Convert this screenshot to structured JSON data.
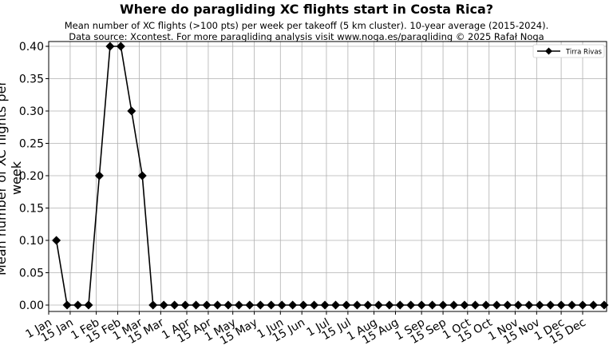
{
  "title": "Where do paragliding XC flights start in Costa Rica?",
  "subtitle_line1": "Mean number of XC flights (>100 pts) per week per takeoff (5 km cluster). 10-year average (2015-2024).",
  "subtitle_line2": "Data source: Xcontest. For more paragliding analysis visit www.noga.es/paragliding © 2025 Rafał Noga",
  "chart_data": {
    "type": "line",
    "title": "Where do paragliding XC flights start in Costa Rica?",
    "subtitle": "Mean number of XC flights (>100 pts) per week per takeoff (5 km cluster). 10-year average (2015-2024). Data source: Xcontest. For more paragliding analysis visit www.noga.es/paragliding © 2025 Rafał Noga",
    "xlabel": "",
    "ylabel": "Mean number of XC flights per week",
    "ylim": [
      -0.008,
      0.408
    ],
    "yticks": [
      0.0,
      0.05,
      0.1,
      0.15,
      0.2,
      0.25,
      0.3,
      0.35,
      0.4
    ],
    "ytick_labels": [
      "0.00",
      "0.05",
      "0.10",
      "0.15",
      "0.20",
      "0.25",
      "0.30",
      "0.35",
      "0.40"
    ],
    "xtick_labels": [
      "1 Jan",
      "15 Jan",
      "1 Feb",
      "15 Feb",
      "1 Mar",
      "15 Mar",
      "1 Apr",
      "15 Apr",
      "1 May",
      "15 May",
      "1 Jun",
      "15 Jun",
      "1 Jul",
      "15 Jul",
      "1 Aug",
      "15 Aug",
      "1 Sep",
      "15 Sep",
      "1 Oct",
      "15 Oct",
      "1 Nov",
      "15 Nov",
      "1 Dec",
      "15 Dec"
    ],
    "xtick_days": [
      0,
      14,
      31,
      45,
      59,
      73,
      90,
      104,
      120,
      134,
      151,
      165,
      181,
      195,
      212,
      226,
      243,
      257,
      273,
      287,
      304,
      318,
      334,
      348
    ],
    "grid": true,
    "legend_position": "upper right",
    "series": [
      {
        "name": "Tirra Rivas",
        "color": "#000000",
        "marker": "diamond",
        "x_week": [
          1,
          2,
          3,
          4,
          5,
          6,
          7,
          8,
          9,
          10,
          11,
          12,
          13,
          14,
          15,
          16,
          17,
          18,
          19,
          20,
          21,
          22,
          23,
          24,
          25,
          26,
          27,
          28,
          29,
          30,
          31,
          32,
          33,
          34,
          35,
          36,
          37,
          38,
          39,
          40,
          41,
          42,
          43,
          44,
          45,
          46,
          47,
          48,
          49,
          50,
          51,
          52
        ],
        "values": [
          0.1,
          0,
          0,
          0,
          0.2,
          0.4,
          0.4,
          0.3,
          0.2,
          0,
          0,
          0,
          0,
          0,
          0,
          0,
          0,
          0,
          0,
          0,
          0,
          0,
          0,
          0,
          0,
          0,
          0,
          0,
          0,
          0,
          0,
          0,
          0,
          0,
          0,
          0,
          0,
          0,
          0,
          0,
          0,
          0,
          0,
          0,
          0,
          0,
          0,
          0,
          0,
          0,
          0,
          0
        ]
      }
    ]
  }
}
